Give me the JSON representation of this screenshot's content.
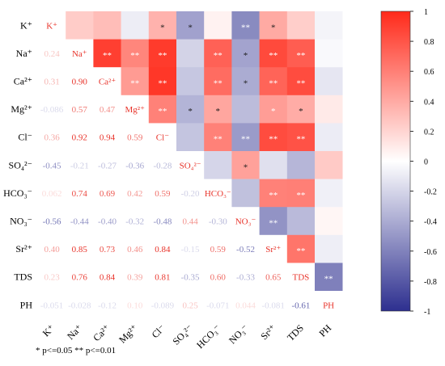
{
  "chart_data": {
    "type": "heatmap",
    "labels": [
      "K⁺",
      "Na⁺",
      "Ca²⁺",
      "Mg²⁺",
      "Cl⁻",
      "SO₄²⁻",
      "HCO₃⁻",
      "NO₃⁻",
      "Sr²⁺",
      "TDS",
      "PH"
    ],
    "matrix": [
      [
        1,
        0.24,
        0.31,
        -0.086,
        0.36,
        -0.45,
        0.062,
        -0.56,
        0.4,
        0.23,
        -0.051
      ],
      [
        0.24,
        1,
        0.9,
        0.57,
        0.92,
        -0.21,
        0.74,
        -0.44,
        0.85,
        0.76,
        -0.028
      ],
      [
        0.31,
        0.9,
        1,
        0.47,
        0.94,
        -0.27,
        0.69,
        -0.4,
        0.73,
        0.84,
        -0.12
      ],
      [
        -0.086,
        0.57,
        0.47,
        1,
        0.59,
        -0.36,
        0.42,
        -0.32,
        0.46,
        0.39,
        0.1
      ],
      [
        0.36,
        0.92,
        0.94,
        0.59,
        1,
        -0.28,
        0.59,
        -0.48,
        0.84,
        0.81,
        -0.089
      ],
      [
        -0.45,
        -0.21,
        -0.27,
        -0.36,
        -0.28,
        1,
        -0.2,
        0.44,
        -0.15,
        -0.35,
        0.25
      ],
      [
        0.062,
        0.74,
        0.69,
        0.42,
        0.59,
        -0.2,
        1,
        -0.3,
        0.59,
        0.6,
        -0.071
      ],
      [
        -0.56,
        -0.44,
        -0.4,
        -0.32,
        -0.48,
        0.44,
        -0.3,
        1,
        -0.52,
        -0.33,
        0.044
      ],
      [
        0.4,
        0.85,
        0.73,
        0.46,
        0.84,
        -0.15,
        0.59,
        -0.52,
        1,
        0.65,
        -0.081
      ],
      [
        0.23,
        0.76,
        0.84,
        0.39,
        0.81,
        -0.35,
        0.6,
        -0.33,
        0.65,
        1,
        -0.61
      ],
      [
        -0.051,
        -0.028,
        -0.12,
        0.1,
        -0.089,
        0.25,
        -0.071,
        0.044,
        -0.081,
        -0.61,
        1
      ]
    ],
    "lower_labels": [
      [
        "",
        "",
        "",
        "",
        "",
        "",
        "",
        "",
        "",
        "",
        ""
      ],
      [
        "0.24",
        "",
        "",
        "",
        "",
        "",
        "",
        "",
        "",
        "",
        ""
      ],
      [
        "0.31",
        "0.90",
        "",
        "",
        "",
        "",
        "",
        "",
        "",
        "",
        ""
      ],
      [
        "-0.086",
        "0.57",
        "0.47",
        "",
        "",
        "",
        "",
        "",
        "",
        "",
        ""
      ],
      [
        "0.36",
        "0.92",
        "0.94",
        "0.59",
        "",
        "",
        "",
        "",
        "",
        "",
        ""
      ],
      [
        "-0.45",
        "-0.21",
        "-0.27",
        "-0.36",
        "-0.28",
        "",
        "",
        "",
        "",
        "",
        ""
      ],
      [
        "0.062",
        "0.74",
        "0.69",
        "0.42",
        "0.59",
        "-0.20",
        "",
        "",
        "",
        "",
        ""
      ],
      [
        "-0.56",
        "-0.44",
        "-0.40",
        "-0.32",
        "-0.48",
        "0.44",
        "-0.30",
        "",
        "",
        "",
        ""
      ],
      [
        "0.40",
        "0.85",
        "0.73",
        "0.46",
        "0.84",
        "-0.15",
        "0.59",
        "-0.52",
        "",
        "",
        ""
      ],
      [
        "0.23",
        "0.76",
        "0.84",
        "0.39",
        "0.81",
        "-0.35",
        "0.60",
        "-0.33",
        "0.65",
        "",
        ""
      ],
      [
        "-0.051",
        "-0.028",
        "-0.12",
        "0.10",
        "-0.089",
        "0.25",
        "-0.071",
        "0.044",
        "-0.081",
        "-0.61",
        ""
      ]
    ],
    "significance": [
      [
        "",
        "",
        "",
        "",
        "*",
        "*",
        "",
        "**",
        "*",
        "",
        ""
      ],
      [
        "",
        "",
        "**",
        "**",
        "**",
        "",
        "**",
        "*",
        "**",
        "**",
        ""
      ],
      [
        "",
        "",
        "",
        "**",
        "**",
        "",
        "**",
        "*",
        "**",
        "**",
        ""
      ],
      [
        "",
        "",
        "",
        "",
        "**",
        "*",
        "*",
        "",
        "*",
        "*",
        ""
      ],
      [
        "",
        "",
        "",
        "",
        "",
        "",
        "**",
        "**",
        "**",
        "**",
        ""
      ],
      [
        "",
        "",
        "",
        "",
        "",
        "",
        "",
        "*",
        "",
        "",
        ""
      ],
      [
        "",
        "",
        "",
        "",
        "",
        "",
        "",
        "",
        "**",
        "**",
        ""
      ],
      [
        "",
        "",
        "",
        "",
        "",
        "",
        "",
        "",
        "**",
        "",
        ""
      ],
      [
        "",
        "",
        "",
        "",
        "",
        "",
        "",
        "",
        "",
        "**",
        ""
      ],
      [
        "",
        "",
        "",
        "",
        "",
        "",
        "",
        "",
        "",
        "",
        "**"
      ],
      [
        "",
        "",
        "",
        "",
        "",
        "",
        "",
        "",
        "",
        "",
        ""
      ]
    ],
    "colorbar": {
      "range": [
        -1,
        1
      ],
      "ticks": [
        "1",
        "0.8",
        "0.6",
        "0.4",
        "0.2",
        "0",
        "-0.2",
        "-0.4",
        "-0.6",
        "-0.8",
        "-1"
      ],
      "colors": {
        "positive": "#ff2a1a",
        "neutral": "#ffffff",
        "negative": "#2d2f8f"
      }
    },
    "note": "* p<=0.05  ** p<=0.01"
  }
}
